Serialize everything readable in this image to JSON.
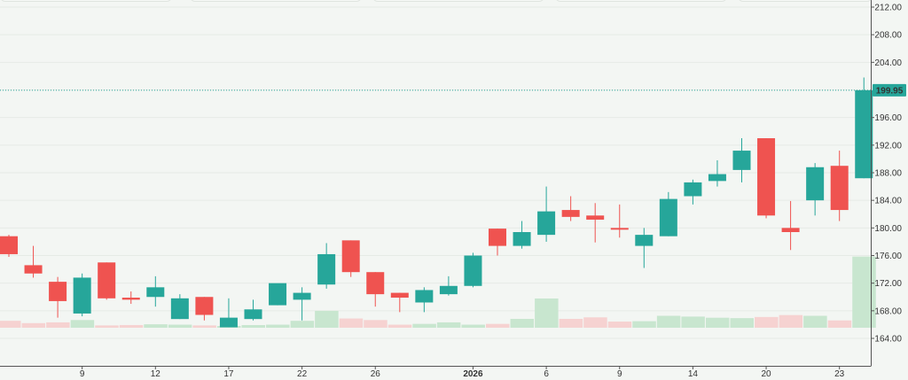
{
  "chart_data": {
    "type": "candlestick",
    "colors": {
      "up": "#26a69a",
      "down": "#ef5350",
      "up_volume": "#c8e6cf",
      "down_volume": "#f6d2d1",
      "grid": "#e6ebe6",
      "axis": "#555555",
      "last_price_bg": "#26a69a",
      "last_price_line": "#26a69a"
    },
    "y_axis": {
      "ticks": [
        "164.00",
        "168.00",
        "172.00",
        "176.00",
        "180.00",
        "184.00",
        "188.00",
        "192.00",
        "196.00",
        "200.00",
        "204.00",
        "208.00",
        "212.00"
      ],
      "range": [
        164,
        212
      ]
    },
    "last_price": "199.95",
    "x_labels": [
      {
        "index": 3,
        "label": "9",
        "bold": false
      },
      {
        "index": 6,
        "label": "12",
        "bold": false
      },
      {
        "index": 9,
        "label": "17",
        "bold": false
      },
      {
        "index": 12,
        "label": "22",
        "bold": false
      },
      {
        "index": 15,
        "label": "26",
        "bold": false
      },
      {
        "index": 19,
        "label": "2026",
        "bold": true
      },
      {
        "index": 22,
        "label": "6",
        "bold": false
      },
      {
        "index": 25,
        "label": "9",
        "bold": false
      },
      {
        "index": 28,
        "label": "14",
        "bold": false
      },
      {
        "index": 31,
        "label": "20",
        "bold": false
      },
      {
        "index": 34,
        "label": "23",
        "bold": false
      }
    ],
    "candles": [
      {
        "o": 178.8,
        "h": 179.0,
        "l": 175.8,
        "c": 176.2,
        "v": 0.18
      },
      {
        "o": 174.6,
        "h": 177.4,
        "l": 172.8,
        "c": 173.4,
        "v": 0.12
      },
      {
        "o": 172.2,
        "h": 172.9,
        "l": 167.0,
        "c": 169.4,
        "v": 0.14
      },
      {
        "o": 167.6,
        "h": 173.4,
        "l": 167.2,
        "c": 172.8,
        "v": 0.2
      },
      {
        "o": 175.0,
        "h": 175.0,
        "l": 169.6,
        "c": 169.8,
        "v": 0.06
      },
      {
        "o": 169.9,
        "h": 170.8,
        "l": 169.0,
        "c": 169.6,
        "v": 0.07
      },
      {
        "o": 170.0,
        "h": 173.0,
        "l": 168.6,
        "c": 171.4,
        "v": 0.09
      },
      {
        "o": 166.8,
        "h": 170.4,
        "l": 166.8,
        "c": 169.8,
        "v": 0.08
      },
      {
        "o": 170.0,
        "h": 170.0,
        "l": 166.6,
        "c": 167.4,
        "v": 0.06
      },
      {
        "o": 165.6,
        "h": 169.8,
        "l": 165.6,
        "c": 167.0,
        "v": 0.04
      },
      {
        "o": 166.8,
        "h": 169.6,
        "l": 166.6,
        "c": 168.2,
        "v": 0.07
      },
      {
        "o": 168.8,
        "h": 171.8,
        "l": 168.8,
        "c": 172.0,
        "v": 0.08
      },
      {
        "o": 169.6,
        "h": 171.4,
        "l": 166.6,
        "c": 170.6,
        "v": 0.18
      },
      {
        "o": 171.8,
        "h": 177.8,
        "l": 171.2,
        "c": 176.2,
        "v": 0.44
      },
      {
        "o": 178.2,
        "h": 178.2,
        "l": 172.9,
        "c": 173.6,
        "v": 0.24
      },
      {
        "o": 173.6,
        "h": 173.6,
        "l": 168.6,
        "c": 170.4,
        "v": 0.2
      },
      {
        "o": 170.6,
        "h": 170.6,
        "l": 167.8,
        "c": 169.9,
        "v": 0.08
      },
      {
        "o": 169.2,
        "h": 171.4,
        "l": 167.8,
        "c": 171.0,
        "v": 0.1
      },
      {
        "o": 170.4,
        "h": 173.0,
        "l": 170.2,
        "c": 171.6,
        "v": 0.14
      },
      {
        "o": 171.6,
        "h": 176.4,
        "l": 171.4,
        "c": 176.0,
        "v": 0.08
      },
      {
        "o": 179.9,
        "h": 179.9,
        "l": 176.0,
        "c": 177.4,
        "v": 0.1
      },
      {
        "o": 177.4,
        "h": 181.0,
        "l": 177.0,
        "c": 179.4,
        "v": 0.23
      },
      {
        "o": 179.0,
        "h": 186.0,
        "l": 178.0,
        "c": 182.4,
        "v": 0.76
      },
      {
        "o": 182.6,
        "h": 184.6,
        "l": 181.0,
        "c": 181.6,
        "v": 0.23
      },
      {
        "o": 181.8,
        "h": 183.6,
        "l": 177.9,
        "c": 181.2,
        "v": 0.27
      },
      {
        "o": 180.0,
        "h": 183.4,
        "l": 178.6,
        "c": 179.9,
        "v": 0.16
      },
      {
        "o": 177.4,
        "h": 180.0,
        "l": 174.2,
        "c": 179.0,
        "v": 0.17
      },
      {
        "o": 178.8,
        "h": 185.2,
        "l": 178.8,
        "c": 184.2,
        "v": 0.31
      },
      {
        "o": 184.6,
        "h": 187.0,
        "l": 183.4,
        "c": 186.6,
        "v": 0.29
      },
      {
        "o": 186.8,
        "h": 189.8,
        "l": 186.0,
        "c": 187.8,
        "v": 0.26
      },
      {
        "o": 188.4,
        "h": 193.0,
        "l": 186.6,
        "c": 191.2,
        "v": 0.25
      },
      {
        "o": 193.0,
        "h": 193.0,
        "l": 181.4,
        "c": 181.8,
        "v": 0.28
      },
      {
        "o": 180.0,
        "h": 183.9,
        "l": 176.8,
        "c": 179.4,
        "v": 0.33
      },
      {
        "o": 184.0,
        "h": 189.4,
        "l": 181.8,
        "c": 188.8,
        "v": 0.31
      },
      {
        "o": 189.0,
        "h": 191.2,
        "l": 181.0,
        "c": 182.6,
        "v": 0.19
      },
      {
        "o": 187.2,
        "h": 201.8,
        "l": 187.2,
        "c": 199.95,
        "v": 1.85
      }
    ]
  }
}
